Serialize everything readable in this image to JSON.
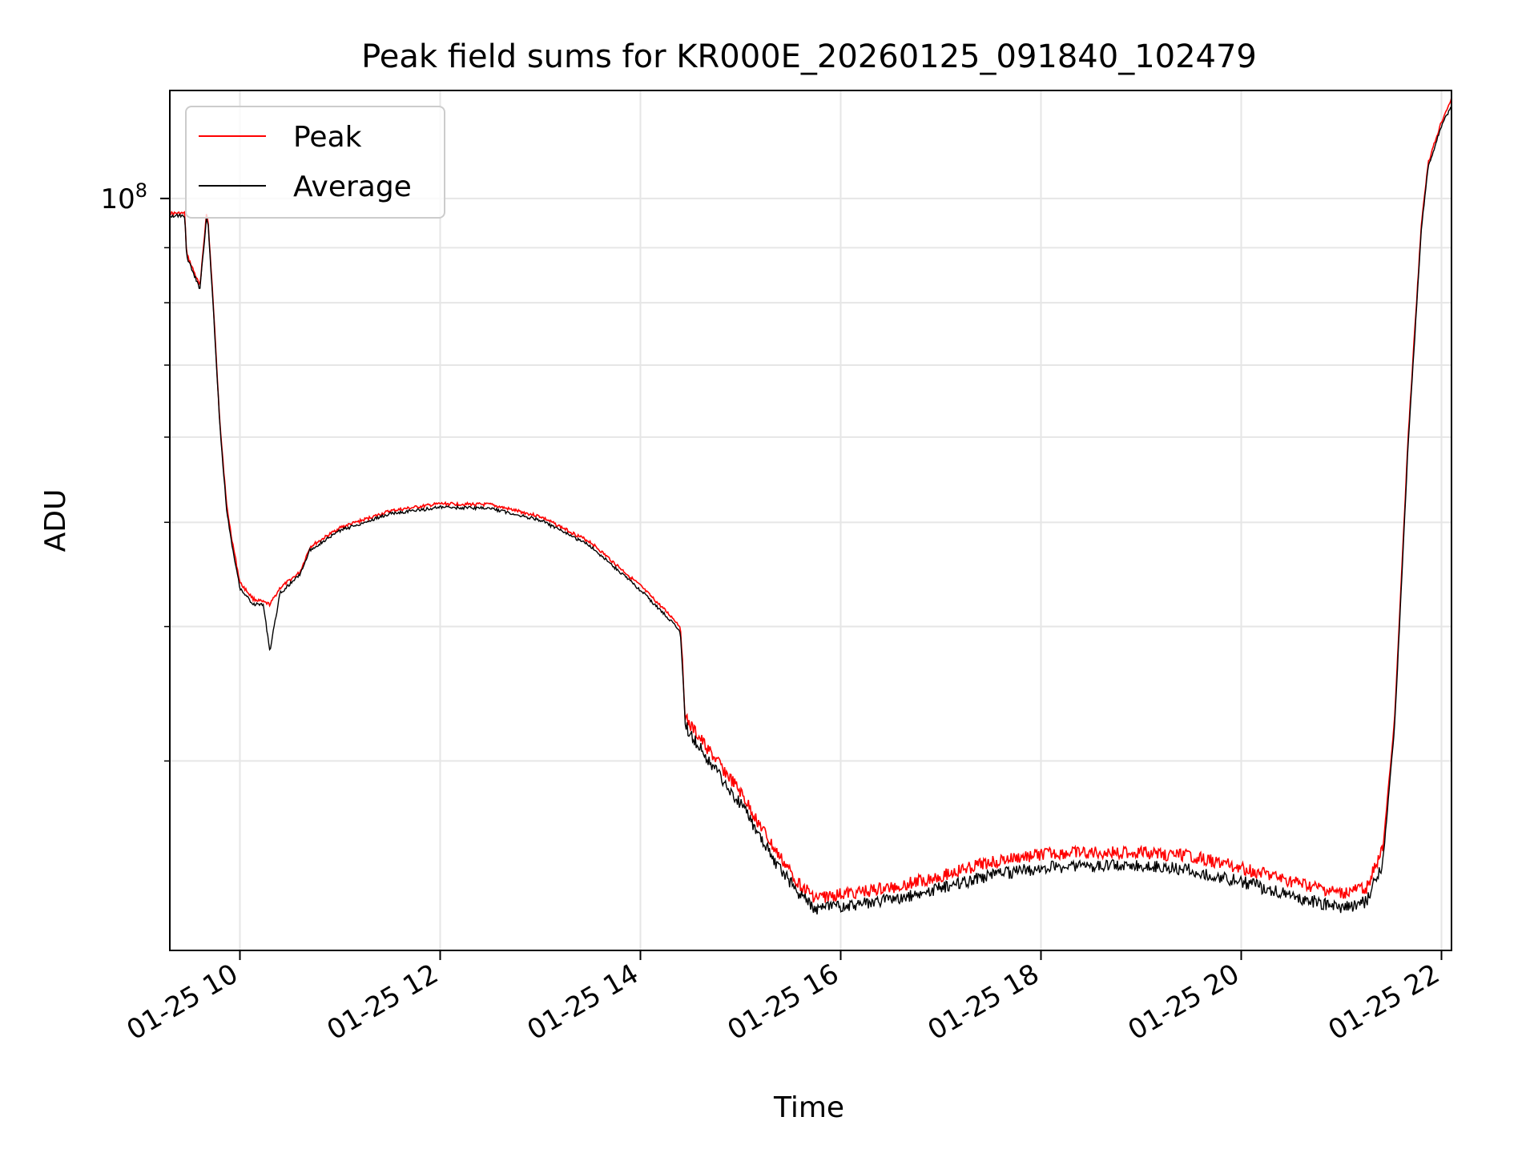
{
  "chart_data": {
    "type": "line",
    "title": "Peak field sums for KR000E_20260125_091840_102479",
    "xlabel": "Time",
    "ylabel": "ADU",
    "y_scale": "log",
    "ylim": [
      20000000,
      126000000
    ],
    "xlim": [
      "01-25 09:18",
      "01-25 22:06"
    ],
    "grid": true,
    "legend_position": "upper-left",
    "x_ticks": [
      {
        "t": "01-25 10:00",
        "label": "01-25 10"
      },
      {
        "t": "01-25 12:00",
        "label": "01-25 12"
      },
      {
        "t": "01-25 14:00",
        "label": "01-25 14"
      },
      {
        "t": "01-25 16:00",
        "label": "01-25 16"
      },
      {
        "t": "01-25 18:00",
        "label": "01-25 18"
      },
      {
        "t": "01-25 20:00",
        "label": "01-25 20"
      },
      {
        "t": "01-25 22:00",
        "label": "01-25 22"
      }
    ],
    "y_major_ticks": [
      {
        "value": 100000000,
        "base": "10",
        "exponent": "8"
      }
    ],
    "y_minor_ticks": [
      30000000,
      40000000,
      50000000,
      60000000,
      70000000,
      80000000,
      90000000
    ],
    "series": [
      {
        "name": "Peak",
        "color": "#ff0000",
        "x": [
          "01-25 09:18",
          "01-25 09:27",
          "01-25 09:28",
          "01-25 09:36",
          "01-25 09:40",
          "01-25 09:41",
          "01-25 09:44",
          "01-25 09:48",
          "01-25 09:52",
          "01-25 09:55",
          "01-25 10:00",
          "01-25 10:08",
          "01-25 10:18",
          "01-25 10:24",
          "01-25 10:36",
          "01-25 10:42",
          "01-25 11:00",
          "01-25 11:30",
          "01-25 12:00",
          "01-25 12:30",
          "01-25 13:00",
          "01-25 13:30",
          "01-25 14:00",
          "01-25 14:20",
          "01-25 14:24",
          "01-25 14:27",
          "01-25 14:40",
          "01-25 15:00",
          "01-25 15:20",
          "01-25 15:35",
          "01-25 15:45",
          "01-25 16:30",
          "01-25 17:00",
          "01-25 17:30",
          "01-25 18:00",
          "01-25 18:30",
          "01-25 19:00",
          "01-25 19:30",
          "01-25 20:00",
          "01-25 20:30",
          "01-25 21:00",
          "01-25 21:15",
          "01-25 21:25",
          "01-25 21:32",
          "01-25 21:40",
          "01-25 21:48",
          "01-25 21:52",
          "01-25 22:00",
          "01-25 22:06"
        ],
        "values": [
          97000000,
          97000000,
          89000000,
          83000000,
          97000000,
          95000000,
          80000000,
          62000000,
          52000000,
          48500000,
          44000000,
          42500000,
          42000000,
          43500000,
          45000000,
          47500000,
          49500000,
          51300000,
          52100000,
          52000000,
          50700000,
          48000000,
          43700000,
          40700000,
          40000000,
          33000000,
          31000000,
          28200000,
          25000000,
          23200000,
          22500000,
          23000000,
          23600000,
          24300000,
          24700000,
          24800000,
          24800000,
          24600000,
          24000000,
          23300000,
          22700000,
          23000000,
          25000000,
          33000000,
          60000000,
          95000000,
          108000000,
          118000000,
          124000000
        ]
      },
      {
        "name": "Average",
        "color": "#000000",
        "x": [
          "01-25 09:18",
          "01-25 09:27",
          "01-25 09:28",
          "01-25 09:36",
          "01-25 09:40",
          "01-25 09:41",
          "01-25 09:44",
          "01-25 09:48",
          "01-25 09:52",
          "01-25 09:55",
          "01-25 10:00",
          "01-25 10:08",
          "01-25 10:14",
          "01-25 10:18",
          "01-25 10:24",
          "01-25 10:36",
          "01-25 10:42",
          "01-25 11:00",
          "01-25 11:30",
          "01-25 12:00",
          "01-25 12:30",
          "01-25 13:00",
          "01-25 13:30",
          "01-25 14:00",
          "01-25 14:20",
          "01-25 14:24",
          "01-25 14:27",
          "01-25 14:40",
          "01-25 15:00",
          "01-25 15:20",
          "01-25 15:35",
          "01-25 15:45",
          "01-25 16:30",
          "01-25 17:00",
          "01-25 17:30",
          "01-25 18:00",
          "01-25 18:30",
          "01-25 19:00",
          "01-25 19:30",
          "01-25 20:00",
          "01-25 20:30",
          "01-25 21:00",
          "01-25 21:15",
          "01-25 21:25",
          "01-25 21:32",
          "01-25 21:40",
          "01-25 21:48",
          "01-25 21:52",
          "01-25 22:00",
          "01-25 22:06"
        ],
        "values": [
          96500000,
          96500000,
          88500000,
          82500000,
          96000000,
          94500000,
          79500000,
          61500000,
          51500000,
          48000000,
          43500000,
          42000000,
          42000000,
          38000000,
          43000000,
          44800000,
          47200000,
          49200000,
          51000000,
          51700000,
          51600000,
          50300000,
          47600000,
          43300000,
          40300000,
          39500000,
          32500000,
          30300000,
          27500000,
          24400000,
          22700000,
          22000000,
          22400000,
          23000000,
          23600000,
          24000000,
          24100000,
          24100000,
          23900000,
          23300000,
          22600000,
          22000000,
          22300000,
          24300000,
          32500000,
          59000000,
          94000000,
          107000000,
          117000000,
          122000000
        ]
      }
    ]
  }
}
